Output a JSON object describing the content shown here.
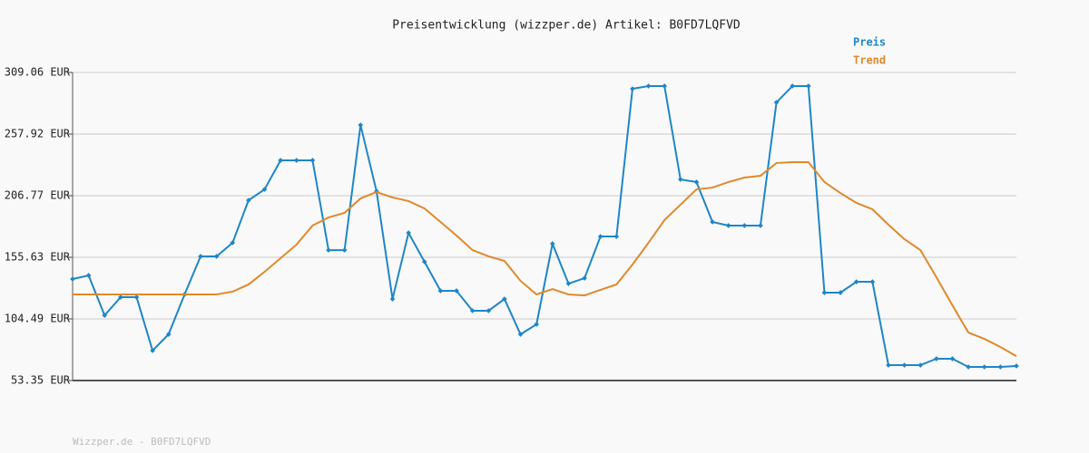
{
  "chart_data": {
    "type": "line",
    "title": "Preisentwicklung (wizzper.de) Artikel: B0FD7LQFVD",
    "footer": "Wizzper.de - B0FD7LQFVD",
    "ylim": [
      53.35,
      309.06
    ],
    "yticks": [
      {
        "value": 53.35,
        "label": "53.35 EUR"
      },
      {
        "value": 104.49,
        "label": "104.49 EUR"
      },
      {
        "value": 155.63,
        "label": "155.63 EUR"
      },
      {
        "value": 206.77,
        "label": "206.77 EUR"
      },
      {
        "value": 257.92,
        "label": "257.92 EUR"
      },
      {
        "value": 309.06,
        "label": "309.06 EUR"
      }
    ],
    "grid": true,
    "series": [
      {
        "name": "Preis",
        "color": "#1f86c6",
        "markers": true,
        "values": [
          137.6,
          140.6,
          107.5,
          122.5,
          122.5,
          78.2,
          91.7,
          124.8,
          156.4,
          156.4,
          167.7,
          203.0,
          212.0,
          236.1,
          236.1,
          236.1,
          161.6,
          161.6,
          265.4,
          210.5,
          121.0,
          175.9,
          151.9,
          127.8,
          127.8,
          111.3,
          111.3,
          121.0,
          91.7,
          100.0,
          166.9,
          133.8,
          138.3,
          172.9,
          172.9,
          295.5,
          297.8,
          297.8,
          220.3,
          218.1,
          185.0,
          182.0,
          182.0,
          182.0,
          284.2,
          297.8,
          297.8,
          126.3,
          126.3,
          135.3,
          135.3,
          66.1,
          66.1,
          66.1,
          71.4,
          71.4,
          64.6,
          64.6,
          64.6,
          65.4
        ]
      },
      {
        "name": "Trend",
        "color": "#e0892a",
        "markers": false,
        "values": [
          124.8,
          124.8,
          124.8,
          124.8,
          124.8,
          124.8,
          124.8,
          124.8,
          124.8,
          124.8,
          127.1,
          133.1,
          143.6,
          154.9,
          166.2,
          182.0,
          188.7,
          192.5,
          204.5,
          209.8,
          205.3,
          202.3,
          196.2,
          185.0,
          173.7,
          161.6,
          156.4,
          152.6,
          136.1,
          124.8,
          129.3,
          124.8,
          124.0,
          128.6,
          133.1,
          149.6,
          167.7,
          186.5,
          199.3,
          212.0,
          213.5,
          218.1,
          221.8,
          223.3,
          233.9,
          234.6,
          234.6,
          218.1,
          209.0,
          200.8,
          195.5,
          182.7,
          170.7,
          161.6,
          139.1,
          115.8,
          93.2,
          87.9,
          81.2,
          73.6
        ]
      }
    ]
  }
}
